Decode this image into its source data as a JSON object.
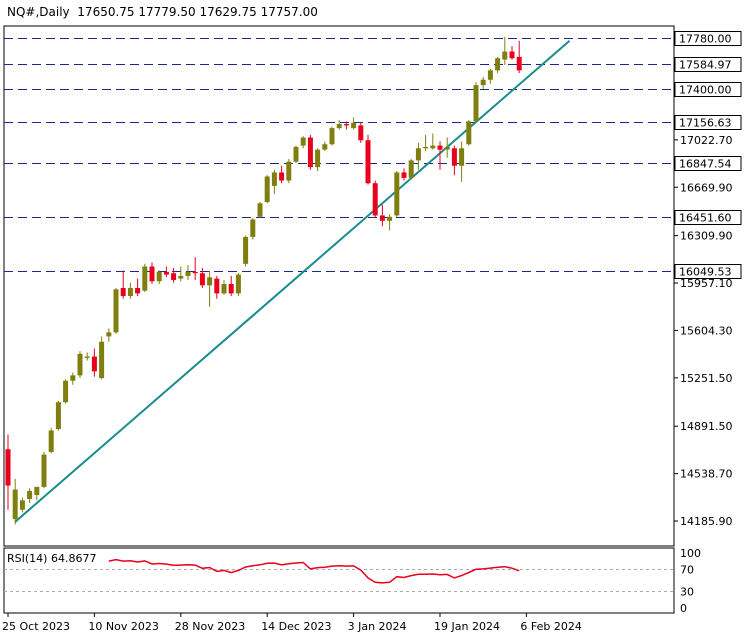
{
  "header": {
    "symbol": "NQ#,Daily",
    "open": "17650.75",
    "high": "17779.50",
    "low": "17629.75",
    "close": "17757.00"
  },
  "rsi_header": {
    "label": "RSI(14)",
    "value": "64.8677"
  },
  "colors": {
    "bull": "#7f7f0f",
    "bear": "#e8001c",
    "trendline": "#1a8c8c",
    "rsi_line": "#e8001c",
    "level_line": "#1b2a8a",
    "label_box_border": "#000000"
  },
  "chart_data": [
    {
      "type": "candlestick",
      "title": "",
      "ylim": [
        14000,
        17870
      ],
      "y_ticks": [
        "14185.90",
        "14538.70",
        "14891.50",
        "15251.50",
        "15604.30",
        "15957.10",
        "16309.90",
        "16669.90",
        "17022.70"
      ],
      "x_tick_labels": [
        {
          "label": "25 Oct 2023",
          "index": 0
        },
        {
          "label": "10 Nov 2023",
          "index": 12
        },
        {
          "label": "28 Nov 2023",
          "index": 24
        },
        {
          "label": "14 Dec 2023",
          "index": 36
        },
        {
          "label": "3 Jan 2024",
          "index": 48
        },
        {
          "label": "19 Jan 2024",
          "index": 60
        },
        {
          "label": "6 Feb 2024",
          "index": 72
        }
      ],
      "levels": [
        {
          "label": "17780.00",
          "value": 17780
        },
        {
          "label": "17584.97",
          "value": 17584.97
        },
        {
          "label": "17400.00",
          "value": 17400
        },
        {
          "label": "17156.63",
          "value": 17156.63
        },
        {
          "label": "16847.54",
          "value": 16847.54
        },
        {
          "label": "16451.60",
          "value": 16451.6
        },
        {
          "label": "16049.53",
          "value": 16049.53
        }
      ],
      "trendline": {
        "from": {
          "index": 1,
          "value": 14180
        },
        "to": {
          "index": 78,
          "value": 17760
        }
      },
      "candles": [
        {
          "o": 14720,
          "h": 14830,
          "l": 14270,
          "c": 14450
        },
        {
          "o": 14200,
          "h": 14500,
          "l": 14160,
          "c": 14420
        },
        {
          "o": 14270,
          "h": 14360,
          "l": 14250,
          "c": 14340
        },
        {
          "o": 14350,
          "h": 14430,
          "l": 14320,
          "c": 14410
        },
        {
          "o": 14380,
          "h": 14440,
          "l": 14340,
          "c": 14440
        },
        {
          "o": 14440,
          "h": 14700,
          "l": 14430,
          "c": 14680
        },
        {
          "o": 14700,
          "h": 14880,
          "l": 14690,
          "c": 14860
        },
        {
          "o": 14870,
          "h": 15080,
          "l": 14860,
          "c": 15070
        },
        {
          "o": 15070,
          "h": 15240,
          "l": 15060,
          "c": 15230
        },
        {
          "o": 15230,
          "h": 15290,
          "l": 15200,
          "c": 15270
        },
        {
          "o": 15270,
          "h": 15450,
          "l": 15250,
          "c": 15430
        },
        {
          "o": 15400,
          "h": 15440,
          "l": 15380,
          "c": 15410
        },
        {
          "o": 15410,
          "h": 15470,
          "l": 15260,
          "c": 15300
        },
        {
          "o": 15250,
          "h": 15560,
          "l": 15240,
          "c": 15520
        },
        {
          "o": 15560,
          "h": 15620,
          "l": 15520,
          "c": 15590
        },
        {
          "o": 15590,
          "h": 15920,
          "l": 15580,
          "c": 15910
        },
        {
          "o": 15920,
          "h": 16050,
          "l": 15840,
          "c": 15860
        },
        {
          "o": 15860,
          "h": 15960,
          "l": 15840,
          "c": 15920
        },
        {
          "o": 15920,
          "h": 15990,
          "l": 15860,
          "c": 15880
        },
        {
          "o": 15900,
          "h": 16100,
          "l": 15890,
          "c": 16080
        },
        {
          "o": 16080,
          "h": 16110,
          "l": 15950,
          "c": 15970
        },
        {
          "o": 15970,
          "h": 16050,
          "l": 15950,
          "c": 16040
        },
        {
          "o": 16040,
          "h": 16080,
          "l": 16000,
          "c": 16020
        },
        {
          "o": 16030,
          "h": 16070,
          "l": 15960,
          "c": 15980
        },
        {
          "o": 15990,
          "h": 16080,
          "l": 15970,
          "c": 16010
        },
        {
          "o": 16010,
          "h": 16090,
          "l": 15980,
          "c": 16040
        },
        {
          "o": 16040,
          "h": 16150,
          "l": 15980,
          "c": 16030
        },
        {
          "o": 16030,
          "h": 16070,
          "l": 15920,
          "c": 15940
        },
        {
          "o": 15940,
          "h": 16050,
          "l": 15780,
          "c": 16000
        },
        {
          "o": 15990,
          "h": 16010,
          "l": 15840,
          "c": 15880
        },
        {
          "o": 15880,
          "h": 15980,
          "l": 15870,
          "c": 15950
        },
        {
          "o": 15950,
          "h": 16010,
          "l": 15860,
          "c": 15880
        },
        {
          "o": 15880,
          "h": 16030,
          "l": 15860,
          "c": 16020
        },
        {
          "o": 16100,
          "h": 16310,
          "l": 16080,
          "c": 16300
        },
        {
          "o": 16300,
          "h": 16440,
          "l": 16280,
          "c": 16430
        },
        {
          "o": 16450,
          "h": 16560,
          "l": 16440,
          "c": 16550
        },
        {
          "o": 16560,
          "h": 16760,
          "l": 16550,
          "c": 16750
        },
        {
          "o": 16680,
          "h": 16800,
          "l": 16620,
          "c": 16780
        },
        {
          "o": 16780,
          "h": 16830,
          "l": 16700,
          "c": 16720
        },
        {
          "o": 16720,
          "h": 16880,
          "l": 16700,
          "c": 16860
        },
        {
          "o": 16860,
          "h": 16980,
          "l": 16850,
          "c": 16970
        },
        {
          "o": 16980,
          "h": 17050,
          "l": 16960,
          "c": 17040
        },
        {
          "o": 17040,
          "h": 17060,
          "l": 16800,
          "c": 16820
        },
        {
          "o": 16820,
          "h": 16960,
          "l": 16790,
          "c": 16950
        },
        {
          "o": 16950,
          "h": 17010,
          "l": 16940,
          "c": 16990
        },
        {
          "o": 16990,
          "h": 17120,
          "l": 16980,
          "c": 17110
        },
        {
          "o": 17110,
          "h": 17170,
          "l": 17100,
          "c": 17140
        },
        {
          "o": 17140,
          "h": 17160,
          "l": 17100,
          "c": 17130
        },
        {
          "o": 17110,
          "h": 17190,
          "l": 17100,
          "c": 17150
        },
        {
          "o": 17130,
          "h": 17150,
          "l": 17000,
          "c": 17020
        },
        {
          "o": 17020,
          "h": 17060,
          "l": 16690,
          "c": 16700
        },
        {
          "o": 16700,
          "h": 16720,
          "l": 16440,
          "c": 16460
        },
        {
          "o": 16460,
          "h": 16540,
          "l": 16380,
          "c": 16420
        },
        {
          "o": 16420,
          "h": 16470,
          "l": 16350,
          "c": 16450
        },
        {
          "o": 16460,
          "h": 16790,
          "l": 16450,
          "c": 16780
        },
        {
          "o": 16780,
          "h": 16810,
          "l": 16720,
          "c": 16740
        },
        {
          "o": 16740,
          "h": 16880,
          "l": 16730,
          "c": 16870
        },
        {
          "o": 16870,
          "h": 17000,
          "l": 16800,
          "c": 16960
        },
        {
          "o": 16960,
          "h": 17060,
          "l": 16940,
          "c": 16970
        },
        {
          "o": 16960,
          "h": 17070,
          "l": 16950,
          "c": 16980
        },
        {
          "o": 16980,
          "h": 17010,
          "l": 16800,
          "c": 16950
        },
        {
          "o": 16950,
          "h": 17040,
          "l": 16890,
          "c": 16970
        },
        {
          "o": 16960,
          "h": 16980,
          "l": 16760,
          "c": 16830
        },
        {
          "o": 16830,
          "h": 17010,
          "l": 16710,
          "c": 16960
        },
        {
          "o": 16990,
          "h": 17170,
          "l": 16980,
          "c": 17160
        },
        {
          "o": 17160,
          "h": 17450,
          "l": 17150,
          "c": 17430
        },
        {
          "o": 17430,
          "h": 17490,
          "l": 17400,
          "c": 17470
        },
        {
          "o": 17470,
          "h": 17550,
          "l": 17440,
          "c": 17540
        },
        {
          "o": 17540,
          "h": 17640,
          "l": 17520,
          "c": 17630
        },
        {
          "o": 17620,
          "h": 17790,
          "l": 17580,
          "c": 17680
        },
        {
          "o": 17680,
          "h": 17720,
          "l": 17620,
          "c": 17630
        },
        {
          "o": 17640,
          "h": 17760,
          "l": 17520,
          "c": 17540
        }
      ]
    },
    {
      "type": "line",
      "title": "RSI(14)",
      "ylim": [
        0,
        100
      ],
      "y_ticks": [
        "100",
        "70",
        "30",
        "0"
      ],
      "guide_levels": [
        70,
        30
      ]
    }
  ]
}
